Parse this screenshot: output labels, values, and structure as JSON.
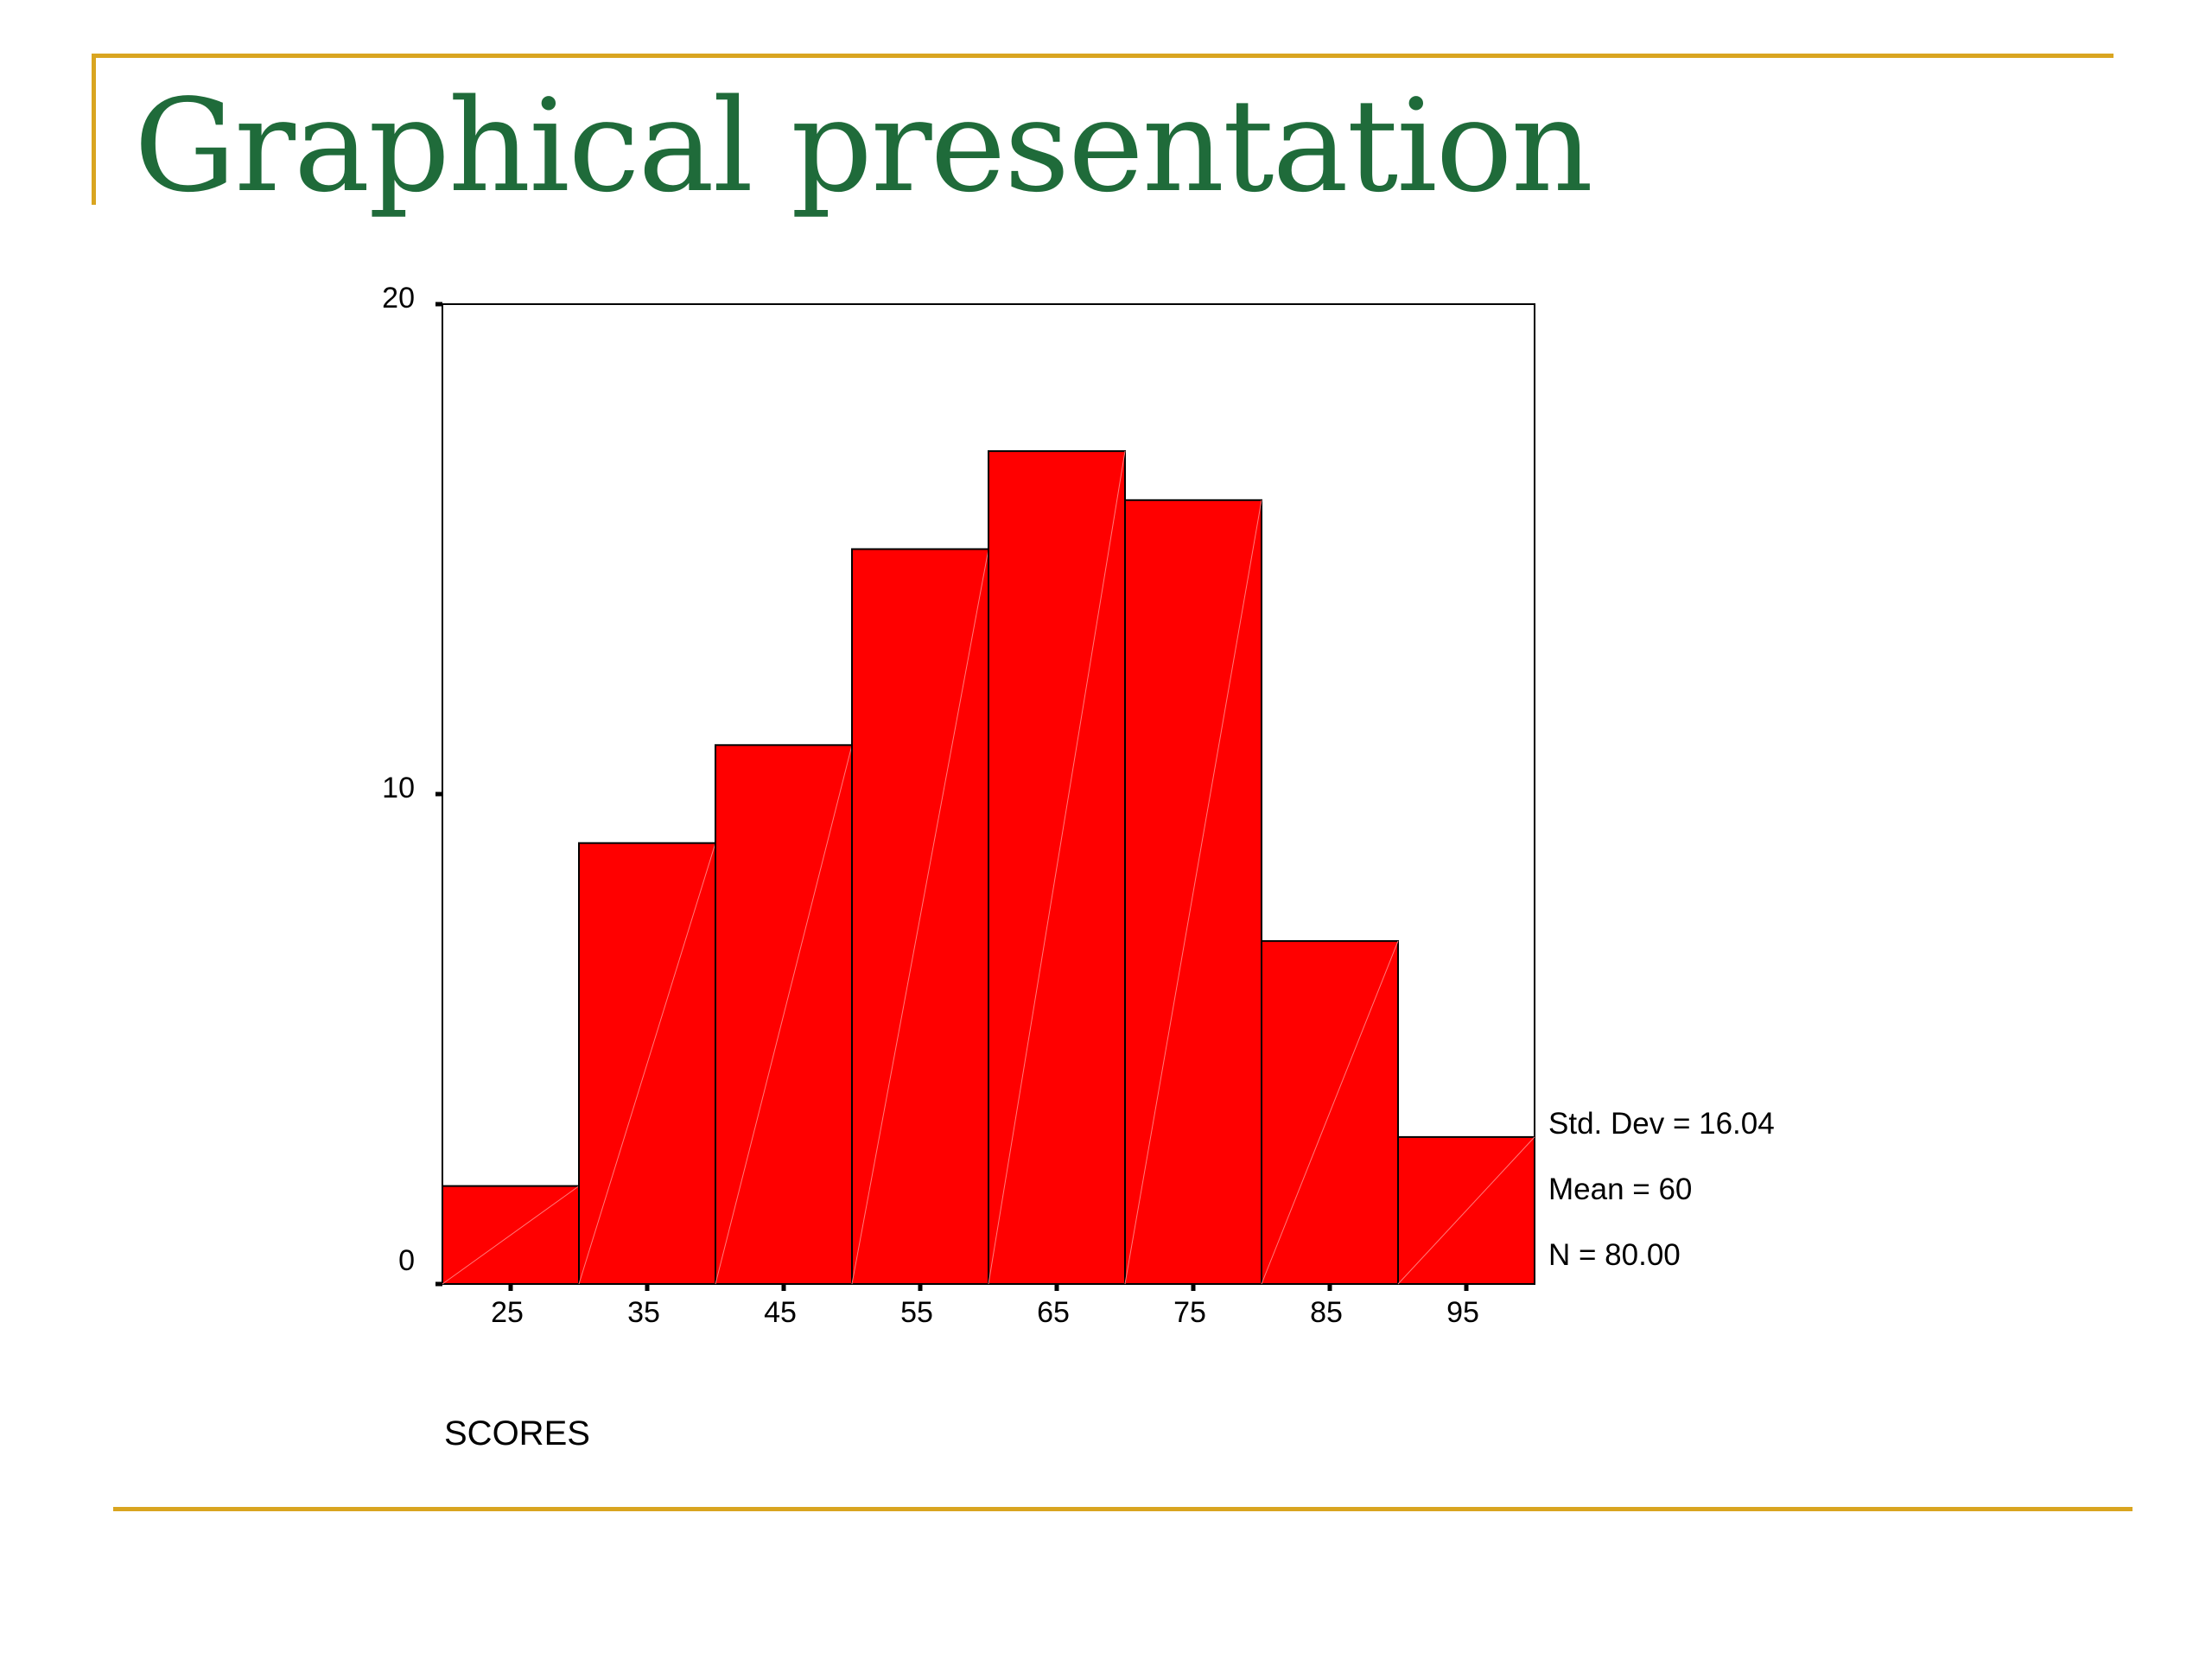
{
  "slide": {
    "title": "Graphical presentation",
    "title_color": "#1f6b3a",
    "accent_color": "#d9a520"
  },
  "chart_data": {
    "type": "bar",
    "subtype": "histogram",
    "xlabel": "SCORES",
    "ylabel": "",
    "categories": [
      "25",
      "35",
      "45",
      "55",
      "65",
      "75",
      "85",
      "95"
    ],
    "values": [
      2,
      9,
      11,
      15,
      17,
      16,
      7,
      3
    ],
    "ylim": [
      0,
      20
    ],
    "yticks": [
      0,
      10,
      20
    ],
    "bar_color": "#ff0000",
    "grid": false,
    "stats": {
      "std_dev": "Std. Dev = 16.04",
      "mean": "Mean = 60",
      "n": "N = 80.00"
    }
  }
}
